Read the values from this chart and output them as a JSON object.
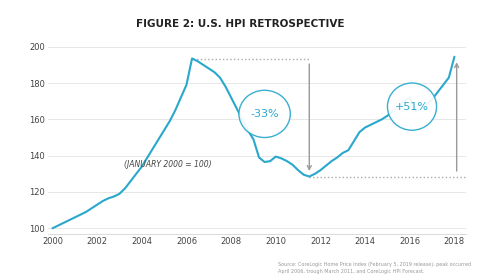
{
  "title": "FIGURE 2: U.S. HPI RETROSPECTIVE",
  "xlabel_note": "(JANUARY 2000 = 100)",
  "background_color": "#ffffff",
  "line_color": "#29a8cc",
  "line_width": 1.5,
  "annotation_color": "#29a8cc",
  "arrow_color": "#999999",
  "dotted_line_color": "#aaaaaa",
  "text_color": "#444444",
  "title_color": "#222222",
  "peak_value": 193.5,
  "trough_value": 128.5,
  "current_value": 194.5,
  "peak_x": 2006.3,
  "trough_x": 2011.5,
  "current_x": 2018.0,
  "ylim": [
    97,
    203
  ],
  "xlim": [
    1999.8,
    2018.5
  ],
  "yticks": [
    100,
    120,
    140,
    160,
    180,
    200
  ],
  "xticks": [
    2000,
    2002,
    2004,
    2006,
    2008,
    2010,
    2012,
    2014,
    2016,
    2018
  ],
  "source_text": "Source: CoreLogic Home Price Index (February 5, 2019 release), peak occurred\nApril 2006, trough March 2011, and CoreLogic HPI Forecast.",
  "hpi_data": {
    "years": [
      2000.0,
      2000.25,
      2000.5,
      2000.75,
      2001.0,
      2001.25,
      2001.5,
      2001.75,
      2002.0,
      2002.25,
      2002.5,
      2002.75,
      2003.0,
      2003.25,
      2003.5,
      2003.75,
      2004.0,
      2004.25,
      2004.5,
      2004.75,
      2005.0,
      2005.25,
      2005.5,
      2005.75,
      2006.0,
      2006.25,
      2006.5,
      2006.75,
      2007.0,
      2007.25,
      2007.5,
      2007.75,
      2008.0,
      2008.25,
      2008.5,
      2008.75,
      2009.0,
      2009.25,
      2009.5,
      2009.75,
      2010.0,
      2010.25,
      2010.5,
      2010.75,
      2011.0,
      2011.25,
      2011.5,
      2011.75,
      2012.0,
      2012.25,
      2012.5,
      2012.75,
      2013.0,
      2013.25,
      2013.5,
      2013.75,
      2014.0,
      2014.25,
      2014.5,
      2014.75,
      2015.0,
      2015.25,
      2015.5,
      2015.75,
      2016.0,
      2016.25,
      2016.5,
      2016.75,
      2017.0,
      2017.25,
      2017.5,
      2017.75,
      2018.0
    ],
    "values": [
      100.0,
      101.5,
      103.0,
      104.5,
      106.0,
      107.5,
      109.0,
      111.0,
      113.0,
      115.0,
      116.5,
      117.5,
      119.0,
      122.0,
      126.0,
      130.0,
      134.0,
      139.0,
      144.0,
      149.0,
      154.0,
      159.0,
      165.0,
      172.0,
      179.0,
      193.5,
      192.0,
      190.0,
      188.0,
      186.0,
      183.0,
      178.0,
      172.0,
      166.0,
      160.0,
      154.0,
      149.0,
      139.0,
      136.5,
      137.0,
      139.5,
      138.5,
      137.0,
      135.0,
      132.0,
      129.5,
      128.5,
      130.0,
      132.0,
      134.5,
      137.0,
      139.0,
      141.5,
      143.0,
      148.0,
      153.0,
      155.5,
      157.0,
      158.5,
      160.0,
      162.0,
      164.5,
      167.0,
      170.0,
      172.0,
      164.5,
      165.5,
      168.0,
      171.0,
      175.0,
      179.0,
      183.0,
      194.5
    ]
  }
}
